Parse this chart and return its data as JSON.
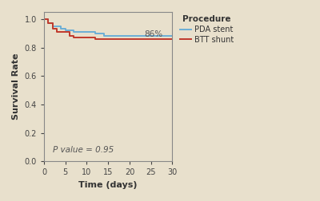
{
  "background_color": "#e8e0cc",
  "plot_bg_color": "#e8e0cc",
  "pda_color": "#6baed6",
  "btt_color": "#c0392b",
  "xlabel": "Time (days)",
  "ylabel": "Survival Rate",
  "xlim": [
    0,
    30
  ],
  "ylim": [
    0.0,
    1.05
  ],
  "xticks": [
    0,
    5,
    10,
    15,
    20,
    25,
    30
  ],
  "yticks": [
    0.0,
    0.2,
    0.4,
    0.6,
    0.8,
    1.0
  ],
  "p_value_text": "P value = 0.95",
  "annotation_text": "86%",
  "legend_title": "Procedure",
  "legend_pda": "PDA stent",
  "legend_btt": "BTT shunt",
  "pda_x": [
    0,
    0.5,
    1,
    1.5,
    2,
    3,
    4,
    5,
    6,
    7,
    8,
    10,
    12,
    14,
    30
  ],
  "pda_y": [
    1.0,
    1.0,
    0.97,
    0.97,
    0.95,
    0.95,
    0.93,
    0.92,
    0.92,
    0.91,
    0.91,
    0.91,
    0.9,
    0.88,
    0.88
  ],
  "btt_x": [
    0,
    0.5,
    1,
    2,
    3,
    4,
    5,
    6,
    7,
    8,
    10,
    12,
    14,
    30
  ],
  "btt_y": [
    1.0,
    1.0,
    0.97,
    0.93,
    0.91,
    0.91,
    0.91,
    0.88,
    0.87,
    0.87,
    0.87,
    0.86,
    0.86,
    0.86
  ]
}
